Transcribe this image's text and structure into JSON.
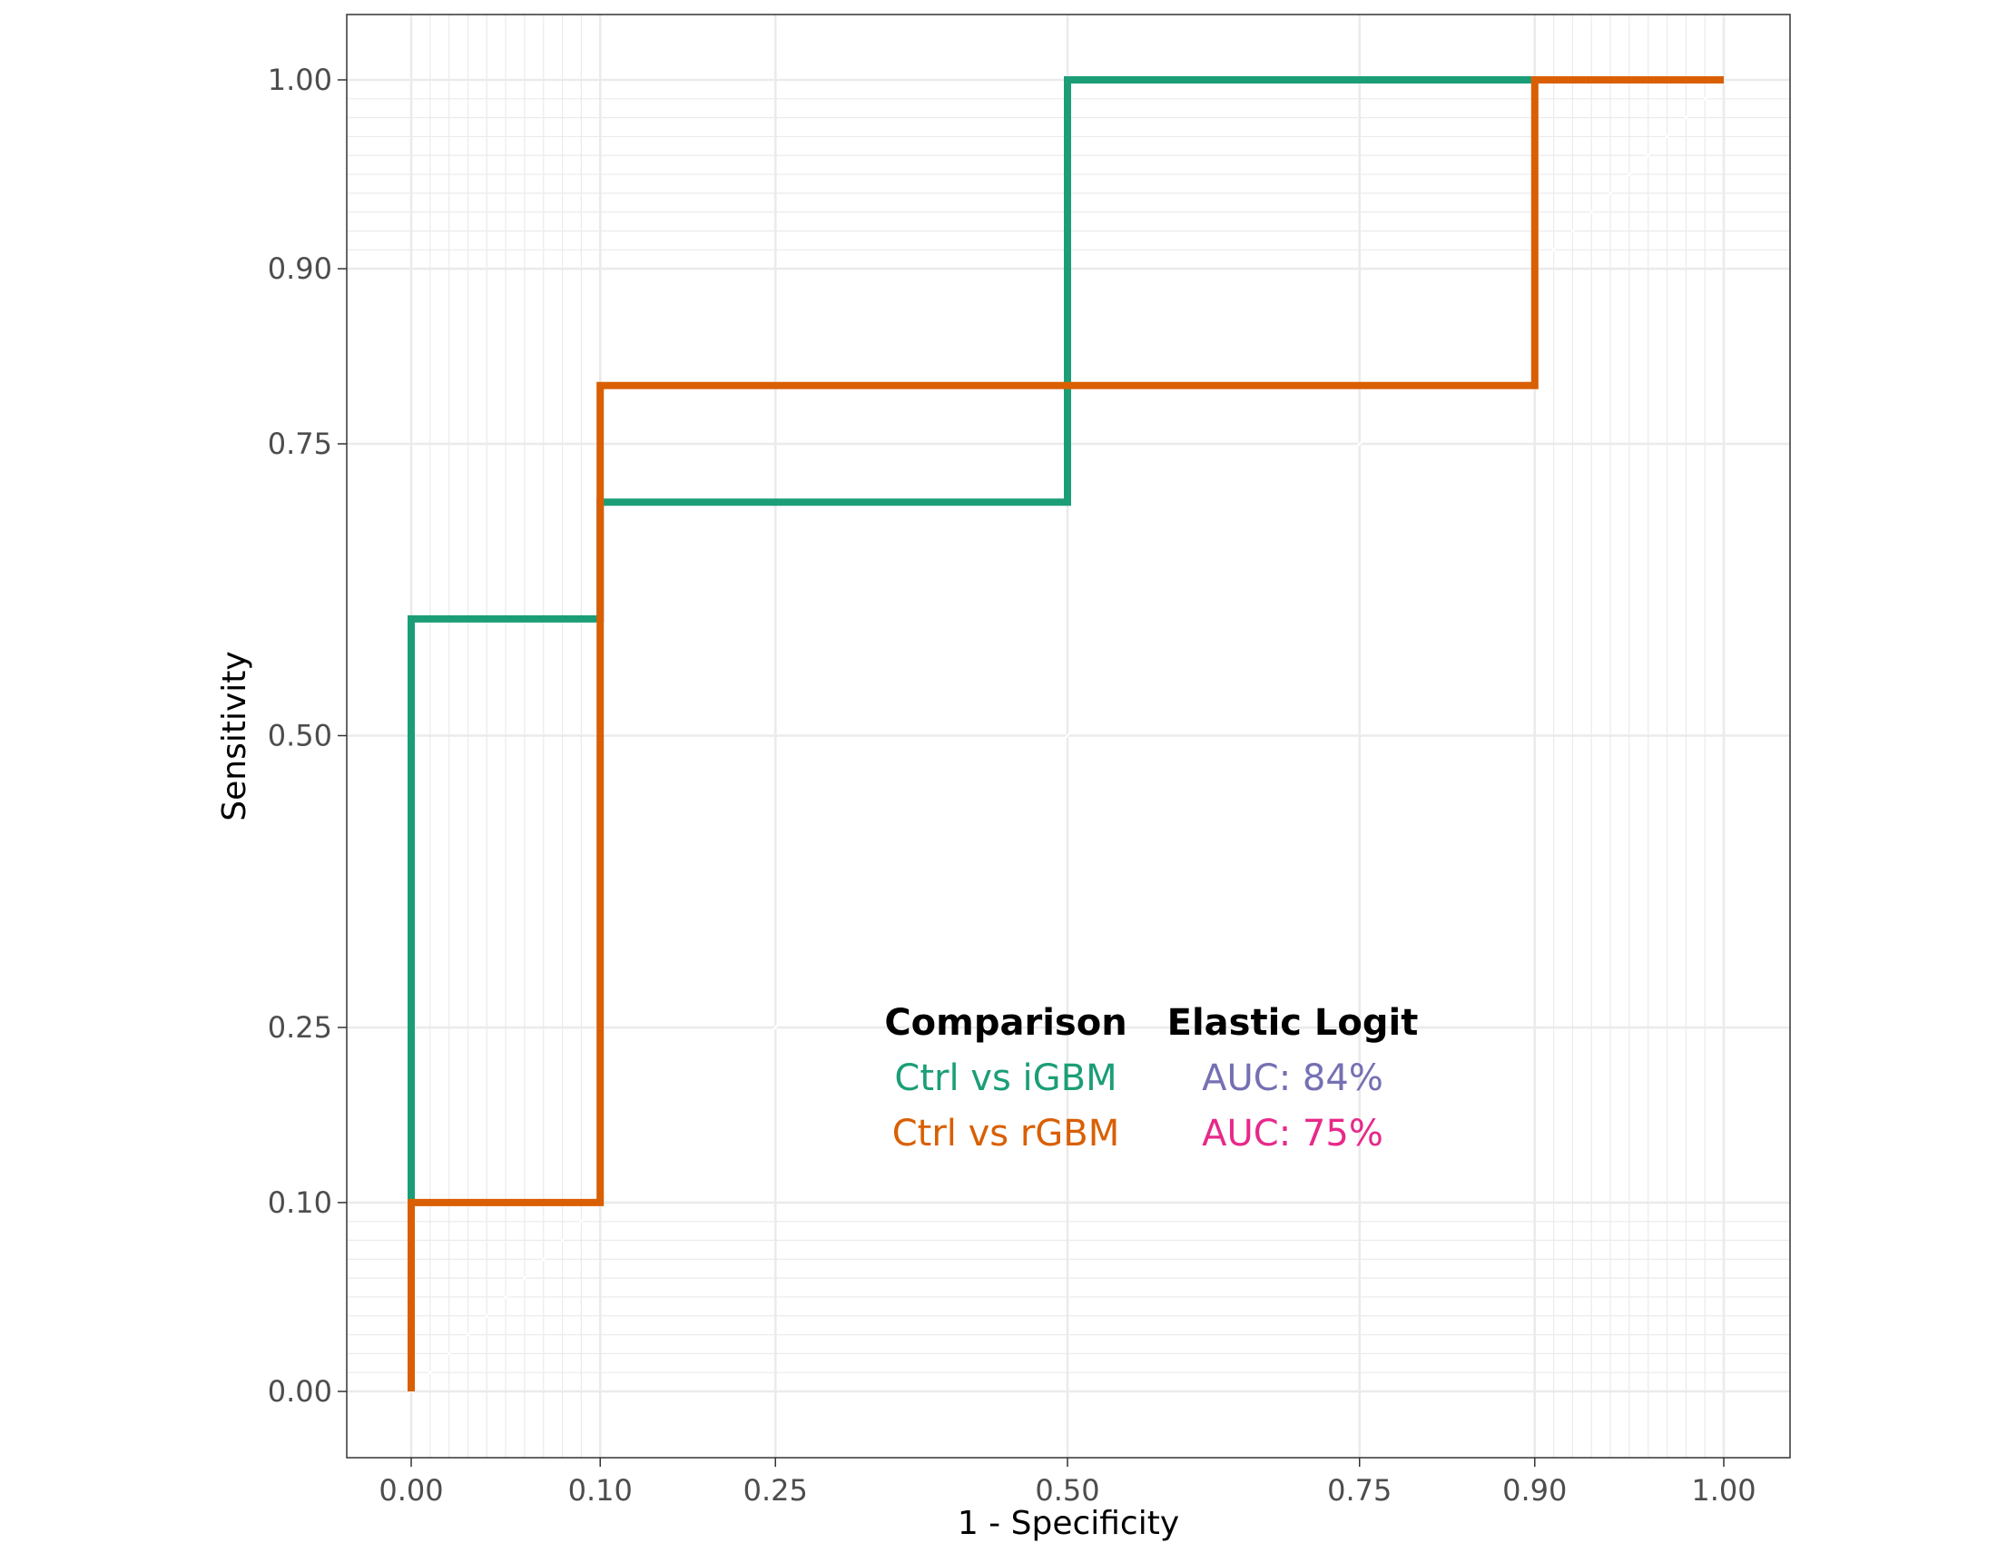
{
  "chart_data": {
    "type": "line",
    "subtype": "roc-step",
    "xlabel": "1 - Specificity",
    "ylabel": "Sensitivity",
    "xlim": [
      -0.05,
      1.05
    ],
    "ylim": [
      -0.05,
      1.05
    ],
    "x_scale": "squish (0.1 and 0.9 emphasized)",
    "y_scale": "squish (0.1 and 0.9 emphasized)",
    "x_ticks": [
      0,
      0.1,
      0.25,
      0.5,
      0.75,
      0.9,
      1
    ],
    "x_tick_labels": [
      "0.00",
      "0.10",
      "0.25",
      "0.50",
      "0.75",
      "0.90",
      "1.00"
    ],
    "y_ticks": [
      0,
      0.1,
      0.25,
      0.5,
      0.75,
      0.9,
      1
    ],
    "y_tick_labels": [
      "0.00",
      "0.10",
      "0.25",
      "0.50",
      "0.75",
      "0.90",
      "1.00"
    ],
    "minor_gridlines": [
      0.01,
      0.02,
      0.03,
      0.04,
      0.05,
      0.06,
      0.07,
      0.08,
      0.09,
      0.91,
      0.92,
      0.93,
      0.94,
      0.95,
      0.96,
      0.97,
      0.98,
      0.99
    ],
    "grid": true,
    "diagonal_reference": true,
    "series": [
      {
        "name": "Ctrl vs iGBM",
        "color": "#1b9e77",
        "x": [
          0,
          0,
          0.1,
          0.1,
          0.5,
          0.5,
          1
        ],
        "y": [
          0,
          0.6,
          0.6,
          0.7,
          0.7,
          1,
          1
        ]
      },
      {
        "name": "Ctrl vs rGBM",
        "color": "#d95f02",
        "x": [
          0,
          0,
          0.1,
          0.1,
          0.9,
          0.9,
          1
        ],
        "y": [
          0,
          0.1,
          0.1,
          0.8,
          0.8,
          1,
          1
        ]
      }
    ],
    "legend": {
      "placement": "center-bottom inside plot",
      "headers": [
        "Comparison",
        "Elastic Logit"
      ],
      "rows": [
        {
          "comparison": "Ctrl vs iGBM",
          "comparison_color": "#1b9e77",
          "auc": "AUC: 84%",
          "auc_color": "#7570b3"
        },
        {
          "comparison": "Ctrl vs rGBM",
          "comparison_color": "#d95f02",
          "auc": "AUC: 75%",
          "auc_color": "#e7298a"
        }
      ]
    }
  }
}
